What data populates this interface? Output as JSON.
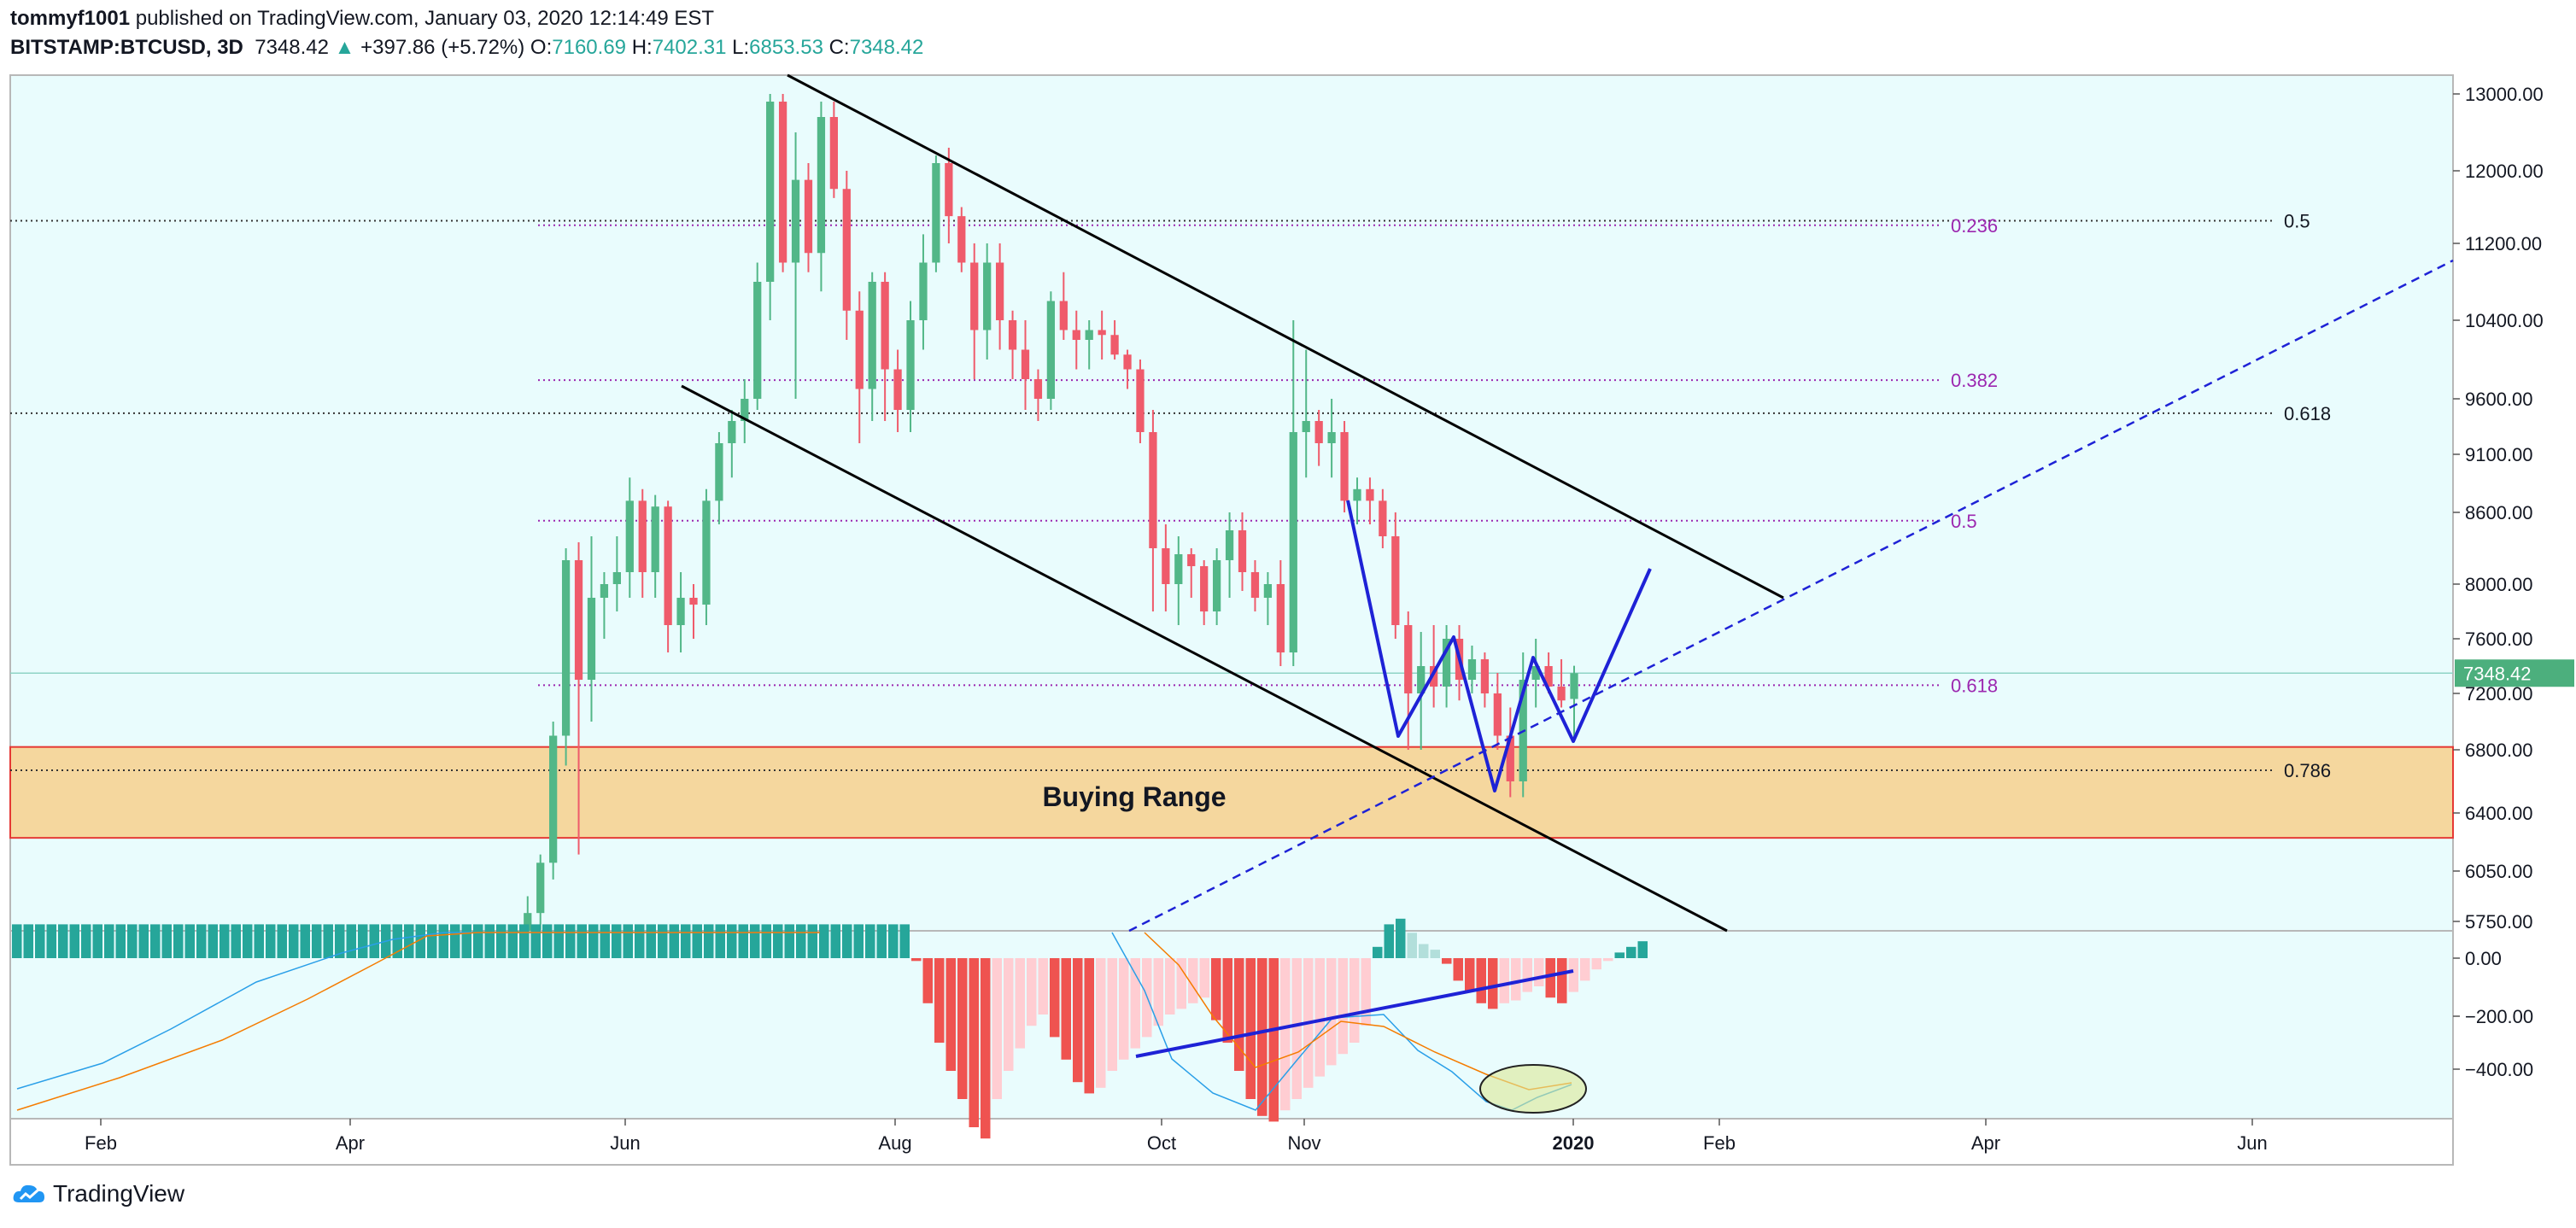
{
  "header": {
    "publisher": "tommyf1001",
    "published_text": "published on TradingView.com, January 03, 2020 12:14:49 EST",
    "symbol": "BITSTAMP:BTCUSD, 3D",
    "last": "7348.42",
    "change_arrow": "▲",
    "change": "+397.86 (+5.72%)",
    "o_label": "O:",
    "o_val": "7160.69",
    "h_label": "H:",
    "h_val": "7402.31",
    "l_label": "L:",
    "l_val": "6853.53",
    "c_label": "C:",
    "c_val": "7348.42"
  },
  "branding": {
    "name": "TradingView",
    "icon": "tradingview-cloud-icon"
  },
  "colors": {
    "background": "#e9fcfd",
    "up": "#52b788",
    "down": "#ef5b6b",
    "macd_up_strong": "#26a69a",
    "macd_up_weak": "#b2dfdb",
    "macd_down_strong": "#ef5350",
    "macd_down_weak": "#ffcdd2",
    "fib": "#9c27b0",
    "zone_fill": "#f5d79e",
    "zone_border": "#e53935",
    "drawing_blue": "#1e22d6",
    "trend_black": "#000000"
  },
  "chart_data": {
    "type": "candlestick",
    "symbol": "BITSTAMP:BTCUSD",
    "interval": "3D",
    "y_axis_ticks": [
      "13000.00",
      "12000.00",
      "11200.00",
      "10400.00",
      "9600.00",
      "9100.00",
      "8600.00",
      "8000.00",
      "7600.00",
      "7200.00",
      "6800.00",
      "6400.00",
      "6050.00",
      "5750.00"
    ],
    "y_axis_tick_values": [
      13000,
      12000,
      11200,
      10400,
      9600,
      9100,
      8600,
      8000,
      7600,
      7200,
      6800,
      6400,
      6050,
      5750
    ],
    "current_price_label": "7348.42",
    "x_axis_ticks": [
      "Feb",
      "Apr",
      "Jun",
      "Aug",
      "Oct",
      "Nov",
      "2020",
      "Feb",
      "Apr",
      "Jun"
    ],
    "annotations": {
      "buying_range": {
        "label": "Buying Range",
        "low": 6250,
        "high": 6820
      },
      "fib_long": [
        {
          "label": "0.5",
          "price": 11450
        },
        {
          "label": "0.618",
          "price": 9470
        },
        {
          "label": "0.786",
          "price": 6670
        }
      ],
      "fib_short": [
        {
          "label": "0.236",
          "price": 11400
        },
        {
          "label": "0.382",
          "price": 9790
        },
        {
          "label": "0.5",
          "price": 8530
        },
        {
          "label": "0.618",
          "price": 7260
        }
      ]
    },
    "macd": {
      "y_axis_ticks": [
        "0.00",
        "−200.00",
        "−400.00"
      ],
      "y_axis_tick_values": [
        0,
        -200,
        -400
      ]
    },
    "candles": [
      [
        5300,
        5500,
        5200,
        5400
      ],
      [
        5400,
        5520,
        5280,
        5450
      ],
      [
        5450,
        5600,
        5350,
        5550
      ],
      [
        5550,
        5700,
        5450,
        5600
      ],
      [
        5600,
        5900,
        5500,
        5800
      ],
      [
        5800,
        6150,
        5700,
        6100
      ],
      [
        6100,
        7000,
        6000,
        6900
      ],
      [
        6900,
        8300,
        6700,
        8200
      ],
      [
        8200,
        8350,
        6150,
        7300
      ],
      [
        7300,
        8400,
        7000,
        7900
      ],
      [
        7900,
        8100,
        7600,
        8000
      ],
      [
        8000,
        8400,
        7800,
        8100
      ],
      [
        8100,
        8900,
        7900,
        8700
      ],
      [
        8700,
        8800,
        7900,
        8100
      ],
      [
        8100,
        8750,
        7900,
        8650
      ],
      [
        8650,
        8700,
        7500,
        7700
      ],
      [
        7700,
        8100,
        7500,
        7900
      ],
      [
        7900,
        8000,
        7600,
        7850
      ],
      [
        7850,
        8800,
        7700,
        8700
      ],
      [
        8700,
        9300,
        8500,
        9200
      ],
      [
        9200,
        9500,
        8900,
        9400
      ],
      [
        9400,
        9800,
        9200,
        9600
      ],
      [
        9600,
        11000,
        9500,
        10800
      ],
      [
        10800,
        13000,
        10400,
        12900
      ],
      [
        12900,
        13000,
        10900,
        11000
      ],
      [
        11000,
        12500,
        9600,
        11900
      ],
      [
        11900,
        12100,
        10900,
        11100
      ],
      [
        11100,
        13100,
        10700,
        12700
      ],
      [
        12700,
        12900,
        11700,
        11800
      ],
      [
        11800,
        12000,
        10200,
        10500
      ],
      [
        10500,
        10700,
        9200,
        9700
      ],
      [
        9700,
        10900,
        9400,
        10800
      ],
      [
        10800,
        10900,
        9400,
        9900
      ],
      [
        9900,
        10100,
        9300,
        9500
      ],
      [
        9500,
        10600,
        9300,
        10400
      ],
      [
        10400,
        11300,
        10100,
        11000
      ],
      [
        11000,
        12200,
        10900,
        12100
      ],
      [
        12100,
        12300,
        11200,
        11500
      ],
      [
        11500,
        11600,
        10900,
        11000
      ],
      [
        11000,
        11200,
        9800,
        10300
      ],
      [
        10300,
        11200,
        10000,
        11000
      ],
      [
        11000,
        11200,
        10100,
        10400
      ],
      [
        10400,
        10500,
        9800,
        10100
      ],
      [
        10100,
        10400,
        9500,
        9800
      ],
      [
        9800,
        9900,
        9400,
        9600
      ],
      [
        9600,
        10700,
        9500,
        10600
      ],
      [
        10600,
        10900,
        10200,
        10300
      ],
      [
        10300,
        10500,
        9900,
        10200
      ],
      [
        10200,
        10400,
        9900,
        10300
      ],
      [
        10300,
        10500,
        10000,
        10250
      ],
      [
        10250,
        10400,
        10000,
        10050
      ],
      [
        10050,
        10100,
        9700,
        9900
      ],
      [
        9900,
        10000,
        9200,
        9300
      ],
      [
        9300,
        9500,
        7800,
        8300
      ],
      [
        8300,
        8500,
        7800,
        8000
      ],
      [
        8000,
        8400,
        7700,
        8250
      ],
      [
        8250,
        8300,
        7900,
        8150
      ],
      [
        8150,
        8200,
        7700,
        7800
      ],
      [
        7800,
        8300,
        7700,
        8200
      ],
      [
        8200,
        8600,
        7900,
        8450
      ],
      [
        8450,
        8600,
        7950,
        8100
      ],
      [
        8100,
        8200,
        7800,
        7900
      ],
      [
        7900,
        8100,
        7700,
        8000
      ],
      [
        8000,
        8200,
        7400,
        7500
      ],
      [
        7500,
        10400,
        7400,
        9300
      ],
      [
        9300,
        10100,
        8900,
        9400
      ],
      [
        9400,
        9500,
        9000,
        9200
      ],
      [
        9200,
        9600,
        8900,
        9300
      ],
      [
        9300,
        9400,
        8600,
        8700
      ],
      [
        8700,
        8900,
        8500,
        8800
      ],
      [
        8800,
        8900,
        8500,
        8700
      ],
      [
        8700,
        8800,
        8300,
        8400
      ],
      [
        8400,
        8600,
        7600,
        7700
      ],
      [
        7700,
        7800,
        6800,
        7200
      ],
      [
        7200,
        7650,
        6800,
        7400
      ],
      [
        7400,
        7700,
        7100,
        7250
      ],
      [
        7250,
        7700,
        7100,
        7600
      ],
      [
        7600,
        7700,
        7150,
        7300
      ],
      [
        7300,
        7550,
        7200,
        7450
      ],
      [
        7450,
        7500,
        7100,
        7200
      ],
      [
        7200,
        7350,
        6800,
        6900
      ],
      [
        6900,
        7100,
        6500,
        6600
      ],
      [
        6600,
        7500,
        6500,
        7300
      ],
      [
        7300,
        7600,
        7100,
        7400
      ],
      [
        7400,
        7500,
        7200,
        7250
      ],
      [
        7250,
        7450,
        7100,
        7150
      ],
      [
        7160.69,
        7402.31,
        6853.53,
        7348.42
      ]
    ],
    "macd_hist": [
      60,
      60,
      60,
      60,
      60,
      60,
      60,
      60,
      60,
      60,
      60,
      60,
      60,
      60,
      60,
      60,
      60,
      60,
      60,
      60,
      60,
      60,
      60,
      60,
      60,
      60,
      60,
      60,
      60,
      60,
      60,
      60,
      60,
      60,
      60,
      60,
      60,
      60,
      60,
      60,
      60,
      60,
      60,
      60,
      60,
      60,
      60,
      60,
      60,
      60,
      60,
      60,
      60,
      60,
      60,
      60,
      60,
      60,
      60,
      60,
      60,
      60,
      60,
      60,
      60,
      60,
      60,
      60,
      60,
      60,
      60,
      60,
      60,
      60,
      60,
      60,
      60,
      60,
      -5,
      -80,
      -150,
      -200,
      -250,
      -300,
      -320,
      -250,
      -200,
      -160,
      -120,
      -100,
      -140,
      -180,
      -220,
      -240,
      -230,
      -200,
      -180,
      -160,
      -140,
      -120,
      -100,
      -90,
      -80,
      -70,
      -110,
      -150,
      -200,
      -250,
      -280,
      -290,
      -270,
      -250,
      -230,
      -210,
      -190,
      -170,
      -150,
      -120,
      20,
      60,
      70,
      45,
      25,
      15,
      -10,
      -40,
      -60,
      -80,
      -90,
      -80,
      -75,
      -60,
      -50,
      -70,
      -80,
      -60,
      -40,
      -20,
      -5,
      10,
      20,
      30
    ]
  }
}
